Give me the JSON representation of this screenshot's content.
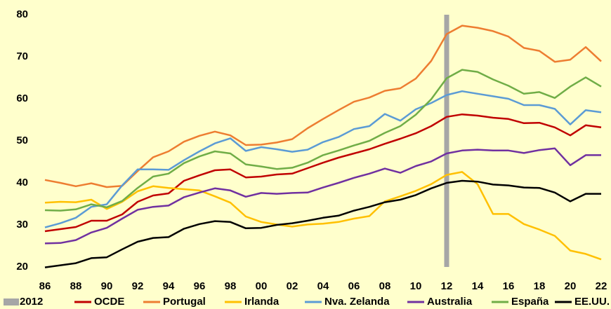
{
  "chart_data": {
    "type": "line",
    "x": [
      1986,
      1987,
      1988,
      1989,
      1990,
      1991,
      1992,
      1993,
      1994,
      1995,
      1996,
      1997,
      1998,
      1999,
      2000,
      2001,
      2002,
      2003,
      2004,
      2005,
      2006,
      2007,
      2008,
      2009,
      2010,
      2011,
      2012,
      2013,
      2014,
      2015,
      2016,
      2017,
      2018,
      2019,
      2020,
      2021,
      2022
    ],
    "xlim": [
      1986,
      2022
    ],
    "xticks": [
      {
        "value": 1986,
        "label": "86"
      },
      {
        "value": 1988,
        "label": "88"
      },
      {
        "value": 1990,
        "label": "90"
      },
      {
        "value": 1992,
        "label": "92"
      },
      {
        "value": 1994,
        "label": "94"
      },
      {
        "value": 1996,
        "label": "96"
      },
      {
        "value": 1998,
        "label": "98"
      },
      {
        "value": 2000,
        "label": "00"
      },
      {
        "value": 2002,
        "label": "02"
      },
      {
        "value": 2004,
        "label": "04"
      },
      {
        "value": 2006,
        "label": "06"
      },
      {
        "value": 2008,
        "label": "08"
      },
      {
        "value": 2010,
        "label": "10"
      },
      {
        "value": 2012,
        "label": "12"
      },
      {
        "value": 2014,
        "label": "14"
      },
      {
        "value": 2016,
        "label": "16"
      },
      {
        "value": 2018,
        "label": "18"
      },
      {
        "value": 2020,
        "label": "20"
      },
      {
        "value": 2022,
        "label": "22"
      }
    ],
    "ylim": [
      20,
      80
    ],
    "yticks": [
      20,
      30,
      40,
      50,
      60,
      70,
      80
    ],
    "vline": {
      "name": "2012",
      "x": 2012,
      "color": "#a6a6a6"
    },
    "series": [
      {
        "name": "OCDE",
        "color": "#c00000",
        "values": [
          28.5,
          29,
          29.5,
          31,
          31,
          32.5,
          35.5,
          37,
          37.5,
          40.5,
          41.8,
          43,
          43.2,
          41.3,
          41.5,
          42,
          42.2,
          43.5,
          44.8,
          46,
          47,
          48,
          49.3,
          50.5,
          51.8,
          53.5,
          55.7,
          56.3,
          56,
          55.5,
          55.2,
          54.2,
          54.3,
          53.2,
          51.3,
          53.7,
          53.2
        ]
      },
      {
        "name": "Portugal",
        "color": "#ed7d31",
        "values": [
          40.7,
          40,
          39.2,
          39.9,
          39,
          39.3,
          42.8,
          46.1,
          47.5,
          49.8,
          51.2,
          52.2,
          51.3,
          49,
          49.1,
          49.6,
          50.4,
          53,
          55.2,
          57.3,
          59.3,
          60.3,
          61.9,
          62.5,
          64.8,
          69,
          75.4,
          77.4,
          76.9,
          76.1,
          74.8,
          72.1,
          71.4,
          68.8,
          69.3,
          72.3,
          68.9
        ]
      },
      {
        "name": "Irlanda",
        "color": "#ffc000",
        "values": [
          35.3,
          35.5,
          35.4,
          36,
          33.8,
          35.5,
          38,
          39.2,
          38.8,
          38.5,
          38.2,
          36.8,
          35.3,
          32,
          30.7,
          30.1,
          29.6,
          30.1,
          30.3,
          30.7,
          31.5,
          32.1,
          35.6,
          36.8,
          38.1,
          39.7,
          41.9,
          42.6,
          39.7,
          32.6,
          32.6,
          30.2,
          28.9,
          27.4,
          23.9,
          23.1,
          21.8
        ]
      },
      {
        "name": "Nva. Zelanda",
        "color": "#5b9bd5",
        "values": [
          29.4,
          30.4,
          31.7,
          34.3,
          34.9,
          39.4,
          43.2,
          43.2,
          43.1,
          45.4,
          47.5,
          49.4,
          50.6,
          47.6,
          48.5,
          48,
          47.4,
          47.9,
          49.7,
          50.9,
          52.8,
          53.5,
          56.4,
          54.8,
          57.5,
          59,
          60.9,
          61.8,
          61.2,
          60.6,
          60,
          58.5,
          58.5,
          57.6,
          53.9,
          57.3,
          56.8
        ]
      },
      {
        "name": "Australia",
        "color": "#7030a0",
        "values": [
          25.6,
          25.7,
          26.4,
          28.2,
          29.3,
          31.5,
          33.6,
          34.3,
          34.6,
          36.6,
          37.7,
          38.7,
          38.2,
          36.7,
          37.6,
          37.4,
          37.6,
          37.7,
          38.9,
          40,
          41.2,
          42.2,
          43.4,
          42.4,
          44,
          45.1,
          47,
          47.7,
          47.9,
          47.7,
          47.7,
          47.1,
          47.8,
          48.2,
          44.2,
          46.6,
          46.6
        ]
      },
      {
        "name": "España",
        "color": "#70ad47",
        "values": [
          33.5,
          33.4,
          33.7,
          34.9,
          34.2,
          35.7,
          38.8,
          41.5,
          42.2,
          44.7,
          46.3,
          47.5,
          47,
          44.4,
          43.9,
          43.3,
          43.6,
          44.8,
          46.6,
          47.7,
          48.9,
          50,
          51.9,
          53.5,
          56.2,
          59.9,
          64.9,
          66.9,
          66.4,
          64.6,
          63.1,
          61.2,
          61.6,
          60.2,
          62.9,
          65.1,
          62.9
        ]
      },
      {
        "name": "EE.UU.",
        "color": "#000000",
        "values": [
          19.9,
          20.4,
          20.9,
          22.1,
          22.3,
          24.2,
          26,
          26.9,
          27.1,
          29.1,
          30.2,
          30.9,
          30.7,
          29.2,
          29.3,
          30,
          30.4,
          31,
          31.7,
          32.2,
          33.4,
          34.3,
          35.4,
          36,
          37.1,
          38.7,
          40,
          40.5,
          40.3,
          39.6,
          39.4,
          38.9,
          38.8,
          37.7,
          35.6,
          37.4,
          37.4
        ]
      }
    ]
  }
}
